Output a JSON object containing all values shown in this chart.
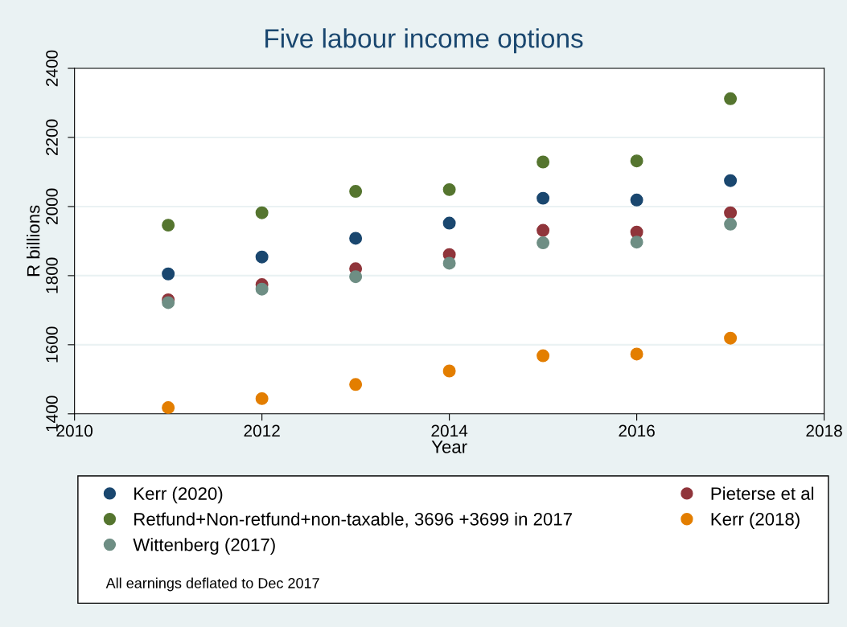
{
  "chart_data": {
    "type": "scatter",
    "title": "Five labour income options",
    "xlabel": "Year",
    "ylabel": "R billions",
    "x": [
      2011,
      2012,
      2013,
      2014,
      2015,
      2016,
      2017
    ],
    "series": [
      {
        "name": "Kerr (2020)",
        "color": "#1a476f",
        "values": [
          1805,
          1854,
          1908,
          1952,
          2024,
          2019,
          2075
        ]
      },
      {
        "name": "Pieterse et al",
        "color": "#90353b",
        "values": [
          1730,
          1774,
          1820,
          1861,
          1931,
          1926,
          1982
        ]
      },
      {
        "name": "Retfund+Non-retfund+non-taxable, 3696 +3699 in 2017",
        "color": "#55752f",
        "values": [
          1946,
          1982,
          2044,
          2049,
          2129,
          2132,
          2312
        ]
      },
      {
        "name": "Kerr (2018)",
        "color": "#e37e00",
        "values": [
          1418,
          1444,
          1485,
          1524,
          1568,
          1573,
          1619
        ]
      },
      {
        "name": "Wittenberg (2017)",
        "color": "#6e8e84",
        "values": [
          1722,
          1761,
          1797,
          1836,
          1895,
          1897,
          1949
        ]
      }
    ],
    "xlim": [
      2010,
      2018
    ],
    "xticks": [
      2010,
      2012,
      2014,
      2016,
      2018
    ],
    "ylim": [
      1400,
      2400
    ],
    "yticks": [
      1400,
      1600,
      1800,
      2000,
      2200,
      2400
    ],
    "grid": "y",
    "legend": "bottom",
    "marker": "circle",
    "annotations": [
      "All earnings deflated to Dec 2017"
    ]
  }
}
